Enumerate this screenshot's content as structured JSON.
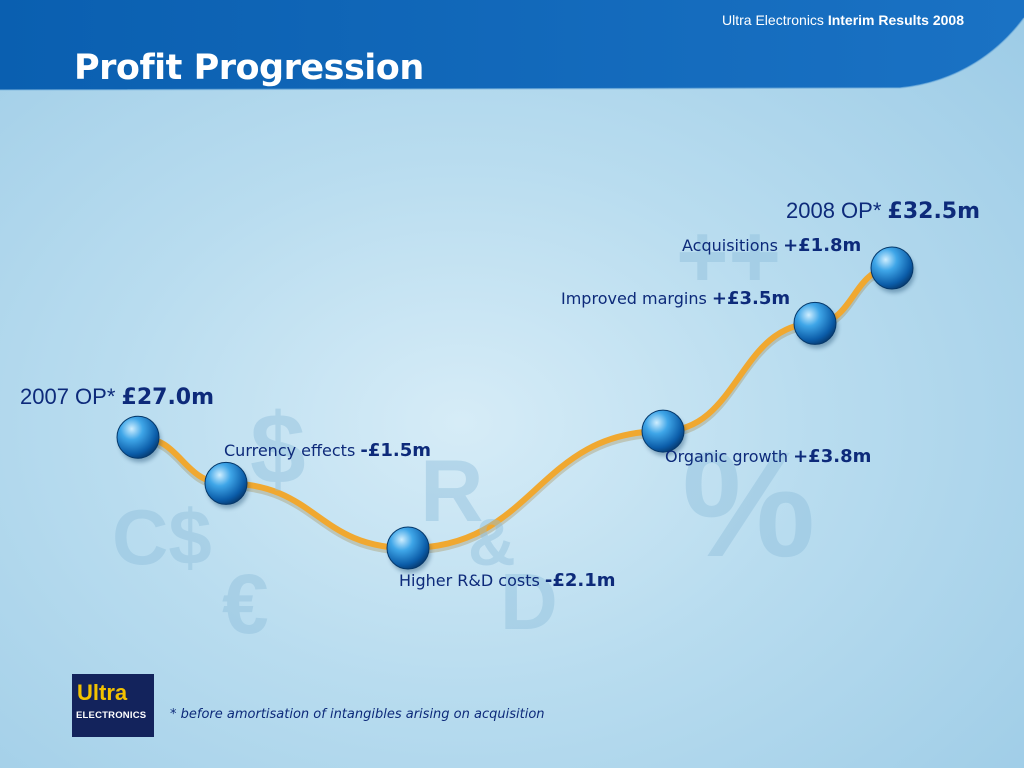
{
  "header": {
    "brand": "Ultra Electronics",
    "report": "Interim Results 2008"
  },
  "title": "Profit Progression",
  "background_symbols": [
    "C$",
    "$",
    "€",
    "R",
    "&",
    "D",
    "%",
    "++"
  ],
  "chart_data": {
    "type": "waterfall",
    "unit": "£m",
    "steps": [
      {
        "label": "2007 OP*",
        "value_text": "£27.0m",
        "value": 27.0,
        "kind": "total"
      },
      {
        "label": "Currency effects",
        "value_text": "-£1.5m",
        "value": -1.5,
        "kind": "delta"
      },
      {
        "label": "Higher R&D costs",
        "value_text": "-£2.1m",
        "value": -2.1,
        "kind": "delta"
      },
      {
        "label": "Organic growth",
        "value_text": "+£3.8m",
        "value": 3.8,
        "kind": "delta"
      },
      {
        "label": "Improved margins",
        "value_text": "+£3.5m",
        "value": 3.5,
        "kind": "delta"
      },
      {
        "label": "Acquisitions",
        "value_text": "+£1.8m",
        "value": 1.8,
        "kind": "delta"
      },
      {
        "label": "2008 OP*",
        "value_text": "£32.5m",
        "value": 32.5,
        "kind": "total"
      }
    ]
  },
  "logo": {
    "line1": "Ultra",
    "line2": "ELECTRONICS"
  },
  "footnote": "* before amortisation of intangibles arising on acquisition",
  "colors": {
    "header_blue": "#0a5fb0",
    "path_orange": "#f0a830",
    "text_navy": "#0d2a7a",
    "logo_navy": "#13235c",
    "logo_yellow": "#f2c200"
  }
}
